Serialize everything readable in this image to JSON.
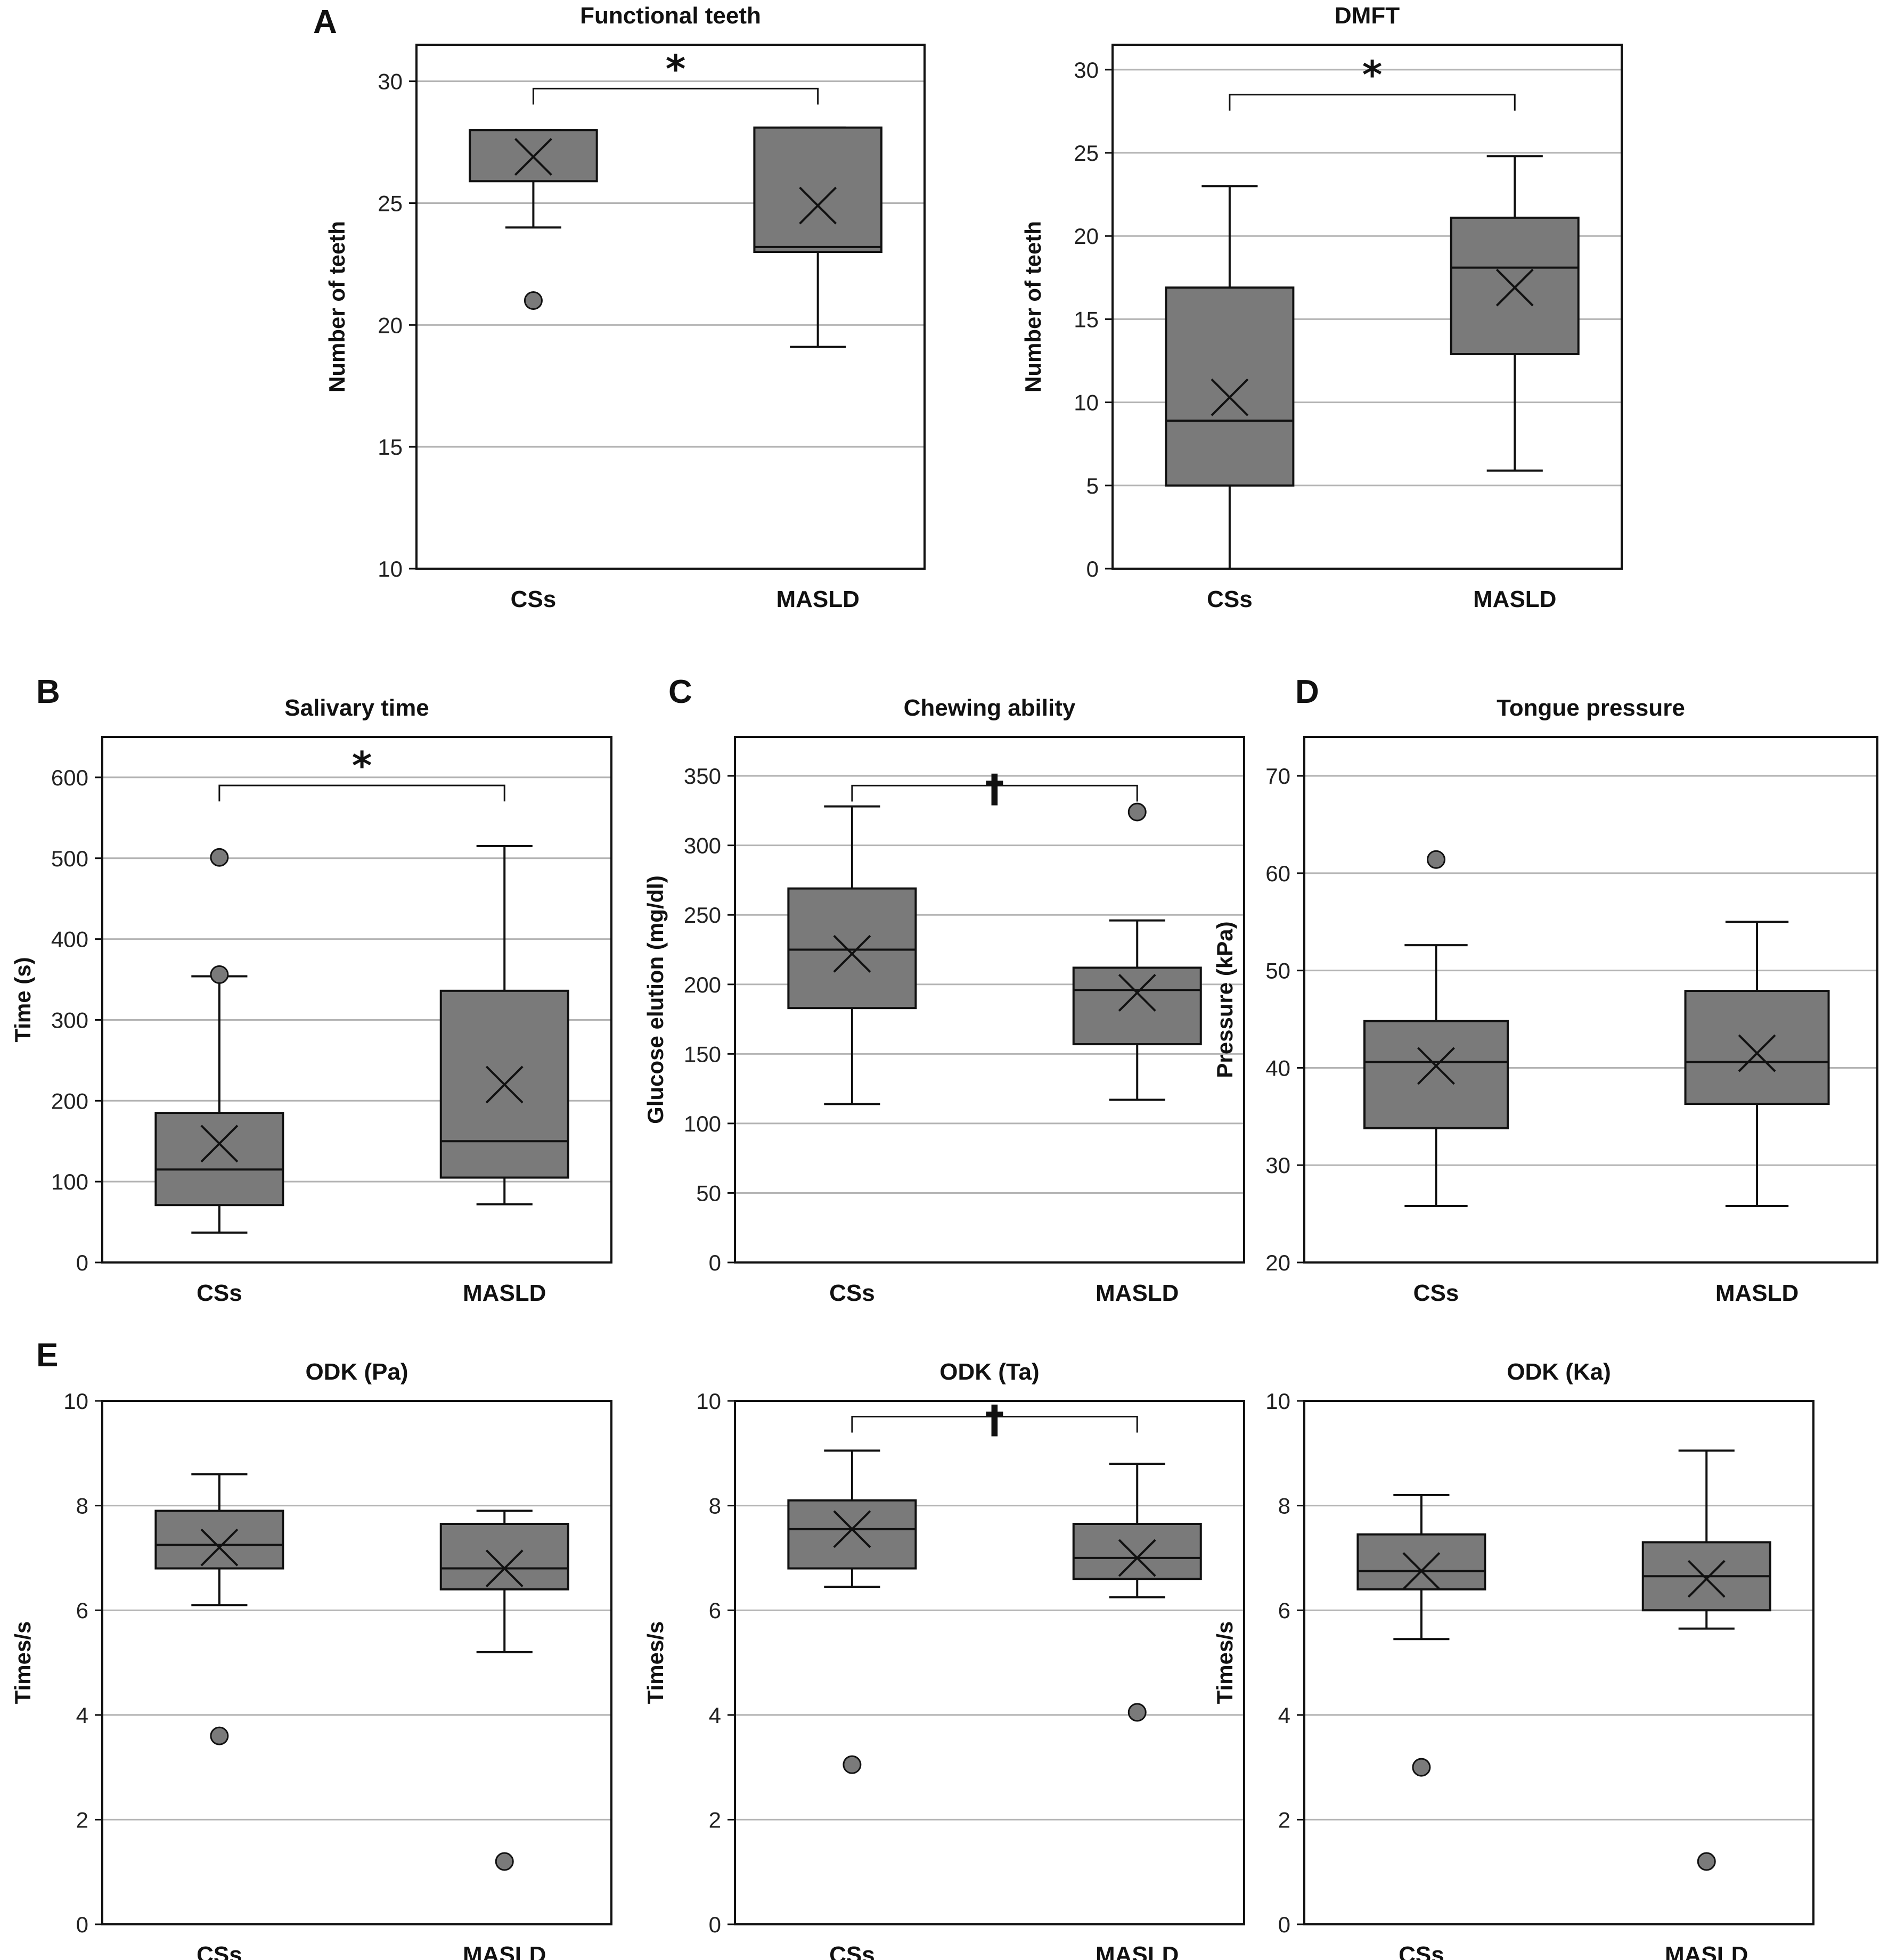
{
  "figure": {
    "colors": {
      "box_fill": "#7a7a7a",
      "stroke": "#111111",
      "grid": "#b4b4b4",
      "outlier_fill": "#7a7a7a"
    }
  },
  "chart_data": [
    {
      "panel": "A",
      "type": "box",
      "title": "Functional teeth",
      "ylabel": "Number of teeth",
      "ylim": [
        10,
        31.5
      ],
      "yticks": [
        10,
        15,
        20,
        25,
        30
      ],
      "grid": true,
      "categories": [
        "CSs",
        "MASLD"
      ],
      "boxes": [
        {
          "name": "CSs",
          "min": 24,
          "q1": 25.9,
          "median": 28,
          "q3": 28,
          "max": 28,
          "mean": 26.9,
          "outliers": [
            21
          ]
        },
        {
          "name": "MASLD",
          "min": 19.1,
          "q1": 23,
          "median": 23.2,
          "q3": 28.1,
          "max": 28.1,
          "mean": 24.9,
          "outliers": []
        }
      ],
      "significance": {
        "symbol": "*",
        "between": [
          "CSs",
          "MASLD"
        ],
        "y": 29.7
      }
    },
    {
      "panel": "",
      "type": "box",
      "title": "DMFT",
      "ylabel": "Number of teeth",
      "ylim": [
        0,
        31.5
      ],
      "yticks": [
        0,
        5,
        10,
        15,
        20,
        25,
        30
      ],
      "grid": true,
      "categories": [
        "CSs",
        "MASLD"
      ],
      "boxes": [
        {
          "name": "CSs",
          "min": 0,
          "q1": 5,
          "median": 8.9,
          "q3": 16.9,
          "max": 23,
          "mean": 10.3,
          "outliers": []
        },
        {
          "name": "MASLD",
          "min": 5.9,
          "q1": 12.9,
          "median": 18.1,
          "q3": 21.1,
          "max": 24.8,
          "mean": 16.9,
          "outliers": []
        }
      ],
      "significance": {
        "symbol": "*",
        "between": [
          "CSs",
          "MASLD"
        ],
        "y": 28.5
      }
    },
    {
      "panel": "B",
      "type": "box",
      "title": "Salivary time",
      "ylabel": "Time (s)",
      "ylim": [
        0,
        650
      ],
      "yticks": [
        0,
        100,
        200,
        300,
        400,
        500,
        600
      ],
      "grid": true,
      "categories": [
        "CSs",
        "MASLD"
      ],
      "boxes": [
        {
          "name": "CSs",
          "min": 37,
          "q1": 71,
          "median": 115,
          "q3": 185,
          "max": 354,
          "mean": 147,
          "outliers": [
            356,
            501
          ]
        },
        {
          "name": "MASLD",
          "min": 72,
          "q1": 105,
          "median": 150,
          "q3": 336,
          "max": 515,
          "mean": 220,
          "outliers": []
        }
      ],
      "significance": {
        "symbol": "*",
        "between": [
          "CSs",
          "MASLD"
        ],
        "y": 590
      }
    },
    {
      "panel": "C",
      "type": "box",
      "title": "Chewing ability",
      "ylabel": "Glucose elution (mg/dl)",
      "ylim": [
        0,
        378
      ],
      "yticks": [
        0,
        50,
        100,
        150,
        200,
        250,
        300,
        350
      ],
      "grid": true,
      "categories": [
        "CSs",
        "MASLD"
      ],
      "boxes": [
        {
          "name": "CSs",
          "min": 114,
          "q1": 183,
          "median": 225,
          "q3": 269,
          "max": 328,
          "mean": 222,
          "outliers": []
        },
        {
          "name": "MASLD",
          "min": 117,
          "q1": 157,
          "median": 196,
          "q3": 212,
          "max": 246,
          "mean": 194,
          "outliers": [
            324
          ]
        }
      ],
      "significance": {
        "symbol": "†",
        "between": [
          "CSs",
          "MASLD"
        ],
        "y": 343
      }
    },
    {
      "panel": "D",
      "type": "box",
      "title": "Tongue pressure",
      "ylabel": "Pressure (kPa)",
      "ylim": [
        20,
        74
      ],
      "yticks": [
        20,
        30,
        40,
        50,
        60,
        70
      ],
      "grid": true,
      "categories": [
        "CSs",
        "MASLD"
      ],
      "boxes": [
        {
          "name": "CSs",
          "min": 25.8,
          "q1": 33.8,
          "median": 40.6,
          "q3": 44.8,
          "max": 52.6,
          "mean": 40.2,
          "outliers": [
            61.4
          ]
        },
        {
          "name": "MASLD",
          "min": 25.8,
          "q1": 36.3,
          "median": 40.6,
          "q3": 47.9,
          "max": 55,
          "mean": 41.5,
          "outliers": []
        }
      ],
      "significance": null
    },
    {
      "panel": "E",
      "type": "box",
      "title": "ODK (Pa)",
      "ylabel": "Times/s",
      "ylim": [
        0,
        10
      ],
      "yticks": [
        0,
        2,
        4,
        6,
        8,
        10
      ],
      "grid": true,
      "categories": [
        "CSs",
        "MASLD"
      ],
      "boxes": [
        {
          "name": "CSs",
          "min": 6.1,
          "q1": 6.8,
          "median": 7.25,
          "q3": 7.9,
          "max": 8.6,
          "mean": 7.2,
          "outliers": [
            3.6
          ]
        },
        {
          "name": "MASLD",
          "min": 5.2,
          "q1": 6.4,
          "median": 6.8,
          "q3": 7.65,
          "max": 7.9,
          "mean": 6.8,
          "outliers": [
            1.2
          ]
        }
      ],
      "significance": null
    },
    {
      "panel": "",
      "type": "box",
      "title": "ODK (Ta)",
      "ylabel": "Times/s",
      "ylim": [
        0,
        10
      ],
      "yticks": [
        0,
        2,
        4,
        6,
        8,
        10
      ],
      "grid": true,
      "categories": [
        "CSs",
        "MASLD"
      ],
      "boxes": [
        {
          "name": "CSs",
          "min": 6.45,
          "q1": 6.8,
          "median": 7.55,
          "q3": 8.1,
          "max": 9.05,
          "mean": 7.55,
          "outliers": [
            3.05
          ]
        },
        {
          "name": "MASLD",
          "min": 6.25,
          "q1": 6.6,
          "median": 7.0,
          "q3": 7.65,
          "max": 8.8,
          "mean": 7.0,
          "outliers": [
            4.05
          ]
        }
      ],
      "significance": {
        "symbol": "†",
        "between": [
          "CSs",
          "MASLD"
        ],
        "y": 9.7
      }
    },
    {
      "panel": "",
      "type": "box",
      "title": "ODK (Ka)",
      "ylabel": "Times/s",
      "ylim": [
        0,
        10
      ],
      "yticks": [
        0,
        2,
        4,
        6,
        8,
        10
      ],
      "grid": true,
      "categories": [
        "CSs",
        "MASLD"
      ],
      "boxes": [
        {
          "name": "CSs",
          "min": 5.45,
          "q1": 6.4,
          "median": 6.75,
          "q3": 7.45,
          "max": 8.2,
          "mean": 6.75,
          "outliers": [
            3.0
          ]
        },
        {
          "name": "MASLD",
          "min": 5.65,
          "q1": 6.0,
          "median": 6.65,
          "q3": 7.3,
          "max": 9.05,
          "mean": 6.6,
          "outliers": [
            1.2
          ]
        }
      ],
      "significance": null
    }
  ]
}
